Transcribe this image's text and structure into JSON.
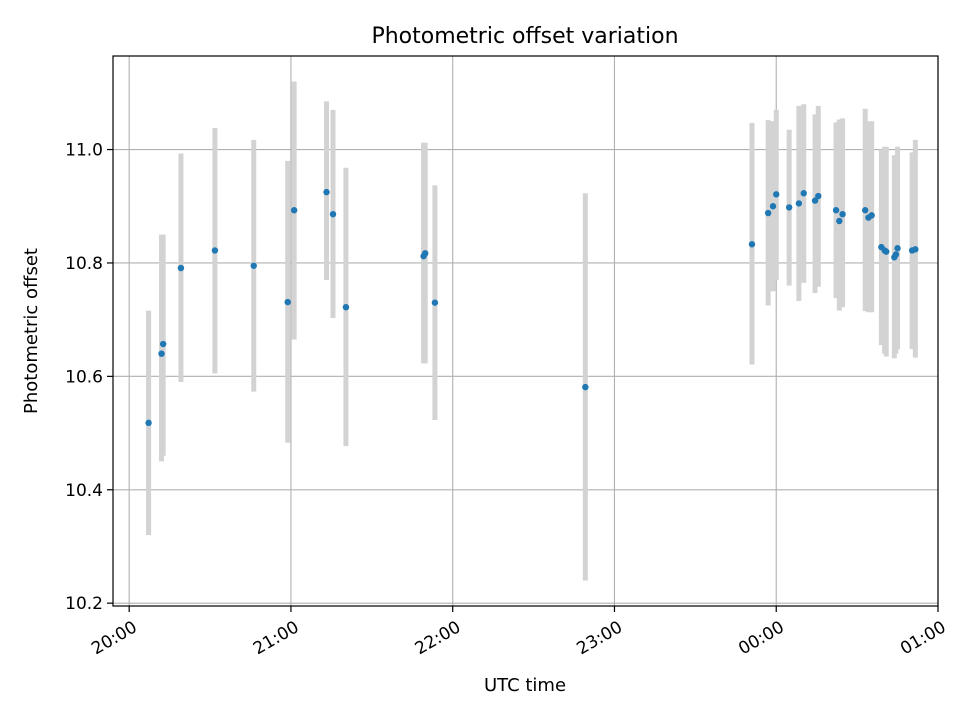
{
  "chart_data": {
    "type": "scatter",
    "title": "Photometric offset variation",
    "xlabel": "UTC time",
    "ylabel": "Photometric offset",
    "x_unit": "hours",
    "xlim": [
      19.9,
      25.0
    ],
    "ylim": [
      10.195,
      11.165
    ],
    "x_ticks": [
      {
        "value": 20,
        "label": "20:00"
      },
      {
        "value": 21,
        "label": "21:00"
      },
      {
        "value": 22,
        "label": "22:00"
      },
      {
        "value": 23,
        "label": "23:00"
      },
      {
        "value": 24,
        "label": "00:00"
      },
      {
        "value": 25,
        "label": "01:00"
      }
    ],
    "y_ticks": [
      {
        "value": 10.2,
        "label": "10.2"
      },
      {
        "value": 10.4,
        "label": "10.4"
      },
      {
        "value": 10.6,
        "label": "10.6"
      },
      {
        "value": 10.8,
        "label": "10.8"
      },
      {
        "value": 11.0,
        "label": "11.0"
      }
    ],
    "grid": true,
    "marker_color": "#1f77b4",
    "errorbar_color": "#d3d3d3",
    "points": [
      {
        "x": 20.12,
        "y": 10.518,
        "lo": 10.32,
        "hi": 10.716
      },
      {
        "x": 20.2,
        "y": 10.64,
        "lo": 10.45,
        "hi": 10.85
      },
      {
        "x": 20.21,
        "y": 10.657,
        "lo": 10.46,
        "hi": 10.85
      },
      {
        "x": 20.32,
        "y": 10.791,
        "lo": 10.59,
        "hi": 10.993
      },
      {
        "x": 20.53,
        "y": 10.822,
        "lo": 10.605,
        "hi": 11.038
      },
      {
        "x": 20.77,
        "y": 10.795,
        "lo": 10.573,
        "hi": 11.017
      },
      {
        "x": 20.98,
        "y": 10.731,
        "lo": 10.483,
        "hi": 10.98
      },
      {
        "x": 21.02,
        "y": 10.893,
        "lo": 10.665,
        "hi": 11.12
      },
      {
        "x": 21.22,
        "y": 10.925,
        "lo": 10.77,
        "hi": 11.085
      },
      {
        "x": 21.26,
        "y": 10.886,
        "lo": 10.703,
        "hi": 11.07
      },
      {
        "x": 21.34,
        "y": 10.722,
        "lo": 10.477,
        "hi": 10.968
      },
      {
        "x": 21.82,
        "y": 10.812,
        "lo": 10.623,
        "hi": 11.012
      },
      {
        "x": 21.83,
        "y": 10.817,
        "lo": 10.623,
        "hi": 11.012
      },
      {
        "x": 21.89,
        "y": 10.73,
        "lo": 10.523,
        "hi": 10.937
      },
      {
        "x": 22.82,
        "y": 10.581,
        "lo": 10.24,
        "hi": 10.923
      },
      {
        "x": 23.85,
        "y": 10.833,
        "lo": 10.621,
        "hi": 11.047
      },
      {
        "x": 23.95,
        "y": 10.888,
        "lo": 10.725,
        "hi": 11.052
      },
      {
        "x": 23.98,
        "y": 10.9,
        "lo": 10.75,
        "hi": 11.05
      },
      {
        "x": 24.0,
        "y": 10.921,
        "lo": 10.77,
        "hi": 11.07
      },
      {
        "x": 24.08,
        "y": 10.898,
        "lo": 10.76,
        "hi": 11.035
      },
      {
        "x": 24.14,
        "y": 10.905,
        "lo": 10.733,
        "hi": 11.077
      },
      {
        "x": 24.17,
        "y": 10.923,
        "lo": 10.765,
        "hi": 11.08
      },
      {
        "x": 24.24,
        "y": 10.91,
        "lo": 10.747,
        "hi": 11.062
      },
      {
        "x": 24.26,
        "y": 10.918,
        "lo": 10.758,
        "hi": 11.077
      },
      {
        "x": 24.37,
        "y": 10.893,
        "lo": 10.738,
        "hi": 11.048
      },
      {
        "x": 24.39,
        "y": 10.874,
        "lo": 10.716,
        "hi": 11.053
      },
      {
        "x": 24.41,
        "y": 10.886,
        "lo": 10.722,
        "hi": 11.055
      },
      {
        "x": 24.55,
        "y": 10.893,
        "lo": 10.715,
        "hi": 11.072
      },
      {
        "x": 24.57,
        "y": 10.88,
        "lo": 10.713,
        "hi": 11.05
      },
      {
        "x": 24.59,
        "y": 10.884,
        "lo": 10.713,
        "hi": 11.05
      },
      {
        "x": 24.65,
        "y": 10.828,
        "lo": 10.655,
        "hi": 11.0
      },
      {
        "x": 24.67,
        "y": 10.822,
        "lo": 10.64,
        "hi": 11.005
      },
      {
        "x": 24.68,
        "y": 10.82,
        "lo": 10.635,
        "hi": 11.005
      },
      {
        "x": 24.73,
        "y": 10.81,
        "lo": 10.632,
        "hi": 10.99
      },
      {
        "x": 24.74,
        "y": 10.815,
        "lo": 10.64,
        "hi": 10.99
      },
      {
        "x": 24.75,
        "y": 10.826,
        "lo": 10.648,
        "hi": 11.005
      },
      {
        "x": 24.84,
        "y": 10.822,
        "lo": 10.648,
        "hi": 10.995
      },
      {
        "x": 24.86,
        "y": 10.824,
        "lo": 10.633,
        "hi": 11.017
      }
    ]
  }
}
